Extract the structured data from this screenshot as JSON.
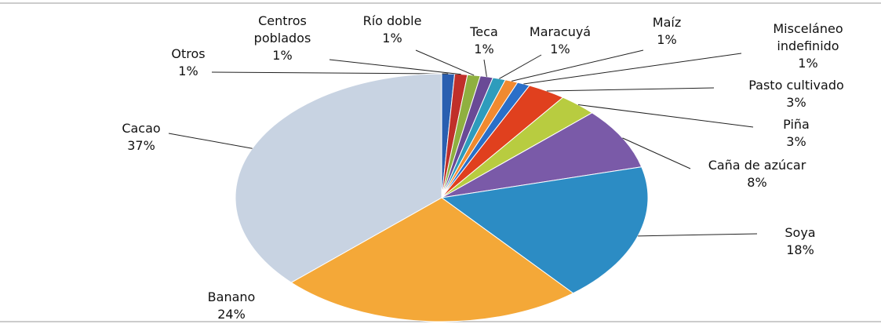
{
  "chart_data": {
    "type": "pie",
    "categories": [
      "Otros",
      "Centros poblados",
      "Río doble",
      "Teca",
      "Maracuyá",
      "Maíz",
      "Misceláneo indefinido",
      "Pasto cultivado",
      "Piña",
      "Caña de azúcar",
      "Soya",
      "Banano",
      "Cacao"
    ],
    "series": [
      {
        "values": [
          1,
          1,
          1,
          1,
          1,
          1,
          1,
          3,
          3,
          8,
          18,
          24,
          37
        ],
        "value_labels": [
          "1%",
          "1%",
          "1%",
          "1%",
          "1%",
          "1%",
          "1%",
          "3%",
          "3%",
          "8%",
          "18%",
          "24%",
          "37%"
        ],
        "colors": [
          "#2a5fb0",
          "#c0302a",
          "#8fb040",
          "#6a4a96",
          "#2e9cbc",
          "#f08a30",
          "#2a6fc8",
          "#e0401e",
          "#b8cc40",
          "#7a5aa8",
          "#2c8cc4",
          "#f4a838",
          "#c8d3e2"
        ]
      }
    ]
  }
}
